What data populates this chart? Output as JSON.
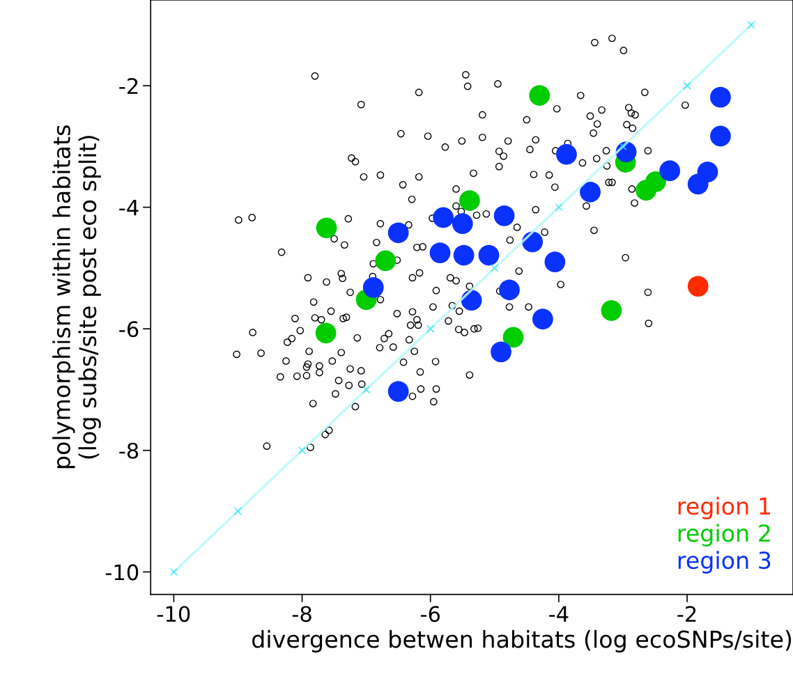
{
  "chart_data": {
    "type": "scatter",
    "xlabel": "divergence betwen habitats (log ecoSNPs/site)",
    "ylabel": "polymorphism within habitats\n(log subs/site post eco split)",
    "xlim": [
      -10.36,
      -0.35
    ],
    "ylim": [
      -10.37,
      -0.59
    ],
    "xticks": [
      -10,
      -8,
      -6,
      -4,
      -2
    ],
    "yticks": [
      -10,
      -8,
      -6,
      -4,
      -2
    ],
    "grid": false,
    "legend": "bottom right",
    "series": [
      {
        "type": "line",
        "color": "#b8f8f8",
        "marker": "cross",
        "x": [
          -10,
          -9,
          -8,
          -7,
          -6,
          -5,
          -4,
          -3,
          -2,
          -1
        ],
        "values": [
          -10,
          -9,
          -8,
          -7,
          -6,
          -5,
          -4,
          -3,
          -2,
          -1
        ]
      },
      {
        "color": "#000000",
        "marker": "circle",
        "x": [
          -7.8,
          -7.08,
          -6.18,
          -5.45,
          -5.42,
          -4.95,
          -5.19,
          -6.46,
          -6.04,
          -5.77,
          -5.51,
          -5.19,
          -4.93,
          -4.93,
          -7.23,
          -7.17,
          -7.04,
          -6.78,
          -6.18,
          -6.43,
          -6.29,
          -5.33,
          -5.6,
          -5.6,
          -5.52,
          -5.28,
          -5.13,
          -5.97,
          -8.99,
          -8.78,
          -7.28,
          -6.78,
          -6.34,
          -7.5,
          -7.34,
          -6.84,
          -8.32,
          -6.21,
          -6.12,
          -6.89,
          -6.52,
          -3.44,
          -3.17,
          -2.99,
          -2.66,
          -2.03,
          -3.66,
          -4.03,
          -3.33,
          -3.51,
          -4.5,
          -3.4,
          -3.46,
          -2.91,
          -2.87,
          -2.81,
          -2.94,
          -2.85,
          -4.79,
          -4.36,
          -4.86,
          -4.45,
          -4.05,
          -3.86,
          -3.63,
          -3.41,
          -3.26,
          -3.25,
          -2.61,
          -4.39,
          -4.15,
          -4.06,
          -3.22,
          -3.17,
          -2.86,
          -2.82,
          -3.57,
          -4.36,
          -4.65,
          -4.76,
          -4.22,
          -3.45,
          -4.62,
          -2.96,
          -3.97,
          -2.61,
          -2.6,
          -4.77,
          -4.47,
          -4.92,
          -7.91,
          -7.62,
          -7.39,
          -7.37,
          -6.9,
          -6.28,
          -6.17,
          -5.69,
          -5.6,
          -5.39,
          -7.25,
          -6.78,
          -5.91,
          -7.82,
          -7.55,
          -8.11,
          -7.8,
          -7.7,
          -7.36,
          -7.31,
          -6.52,
          -6.28,
          -5.96,
          -5.66,
          -5.55,
          -6.21,
          -6.31,
          -6.19,
          -5.72,
          -5.56,
          -5.47,
          -5.32,
          -5.26,
          -8.77,
          -8.03,
          -8.16,
          -8.23,
          -7.14,
          -6.65,
          -6.72,
          -6.33,
          -6.79,
          -6.58,
          -9.02,
          -8.64,
          -7.89,
          -7.39,
          -6.25,
          -8.25,
          -7.91,
          -7.93,
          -7.73,
          -7.53,
          -6.42,
          -5.92,
          -8.34,
          -8.08,
          -7.93,
          -7.73,
          -7.25,
          -7.08,
          -7.43,
          -7.27,
          -7.07,
          -6.16,
          -7.48,
          -6.15,
          -5.91,
          -5.39,
          -6.28,
          -5.95,
          -7.83,
          -7.17,
          -7.58,
          -7.64,
          -8.55,
          -7.87
        ],
        "values": [
          -1.84,
          -2.31,
          -2.11,
          -1.82,
          -2.01,
          -1.97,
          -2.48,
          -2.79,
          -2.83,
          -3.01,
          -2.91,
          -2.85,
          -3.08,
          -3.33,
          -3.19,
          -3.25,
          -3.5,
          -3.47,
          -3.5,
          -3.63,
          -3.87,
          -3.44,
          -3.7,
          -3.98,
          -4.07,
          -4.13,
          -4.11,
          -4.18,
          -4.21,
          -4.17,
          -4.19,
          -4.27,
          -4.29,
          -4.52,
          -4.62,
          -4.58,
          -4.74,
          -4.66,
          -4.65,
          -4.93,
          -4.87,
          -1.29,
          -1.22,
          -1.42,
          -2.11,
          -2.32,
          -2.16,
          -2.38,
          -2.4,
          -2.5,
          -2.56,
          -2.63,
          -2.78,
          -2.36,
          -2.45,
          -2.48,
          -2.64,
          -2.7,
          -2.91,
          -2.89,
          -3.16,
          -3.05,
          -3.07,
          -2.95,
          -3.27,
          -3.2,
          -3.07,
          -3.32,
          -3.07,
          -3.46,
          -3.47,
          -3.67,
          -3.59,
          -3.59,
          -3.7,
          -3.93,
          -3.98,
          -4.04,
          -4.33,
          -4.54,
          -4.41,
          -4.38,
          -5.05,
          -4.83,
          -5.27,
          -5.4,
          -5.91,
          -5.64,
          -5.64,
          -5.38,
          -5.16,
          -5.23,
          -5.09,
          -5.17,
          -5.14,
          -5.16,
          -5.08,
          -5.16,
          -5.21,
          -5.3,
          -5.4,
          -5.52,
          -5.37,
          -5.56,
          -5.71,
          -5.83,
          -5.82,
          -5.85,
          -5.83,
          -5.81,
          -5.75,
          -5.72,
          -5.64,
          -5.62,
          -5.71,
          -5.85,
          -5.94,
          -5.94,
          -5.87,
          -6.01,
          -6.06,
          -6.0,
          -5.99,
          -6.06,
          -6.03,
          -6.16,
          -6.22,
          -6.15,
          -6.08,
          -6.16,
          -6.18,
          -6.31,
          -6.3,
          -6.42,
          -6.4,
          -6.37,
          -6.39,
          -6.37,
          -6.53,
          -6.58,
          -6.63,
          -6.61,
          -6.53,
          -6.55,
          -6.54,
          -6.79,
          -6.78,
          -6.77,
          -6.72,
          -6.66,
          -6.69,
          -6.85,
          -6.93,
          -6.91,
          -6.71,
          -7.07,
          -6.99,
          -6.99,
          -6.76,
          -7.11,
          -7.2,
          -7.23,
          -7.28,
          -7.67,
          -7.74,
          -7.93,
          -7.95
        ]
      },
      {
        "name": "region 1",
        "color": "#ff2a00",
        "marker": "circle",
        "x": [
          -1.83
        ],
        "values": [
          -5.3
        ]
      },
      {
        "name": "region 2",
        "color": "#00cc00",
        "marker": "circle",
        "x": [
          -7.62,
          -6.7,
          -7.0,
          -7.63,
          -5.39,
          -4.3,
          -2.96,
          -2.49,
          -2.64,
          -3.18,
          -4.71
        ],
        "values": [
          -4.34,
          -4.88,
          -5.52,
          -6.07,
          -3.89,
          -2.16,
          -3.26,
          -3.58,
          -3.72,
          -5.7,
          -6.14
        ]
      },
      {
        "name": "region 3",
        "color": "#0a32ff",
        "marker": "circle",
        "x": [
          -6.5,
          -6.89,
          -5.85,
          -5.8,
          -5.5,
          -5.48,
          -5.09,
          -4.85,
          -3.88,
          -3.51,
          -2.95,
          -2.27,
          -1.83,
          -1.68,
          -1.48,
          -1.48,
          -4.41,
          -4.06,
          -4.77,
          -5.36,
          -4.25,
          -4.9,
          -6.5
        ],
        "values": [
          -4.42,
          -5.32,
          -4.75,
          -4.17,
          -4.27,
          -4.79,
          -4.79,
          -4.14,
          -3.13,
          -3.75,
          -3.09,
          -3.4,
          -3.62,
          -3.42,
          -2.19,
          -2.83,
          -4.57,
          -4.9,
          -5.36,
          -5.53,
          -5.84,
          -6.38,
          -7.03
        ]
      }
    ]
  }
}
